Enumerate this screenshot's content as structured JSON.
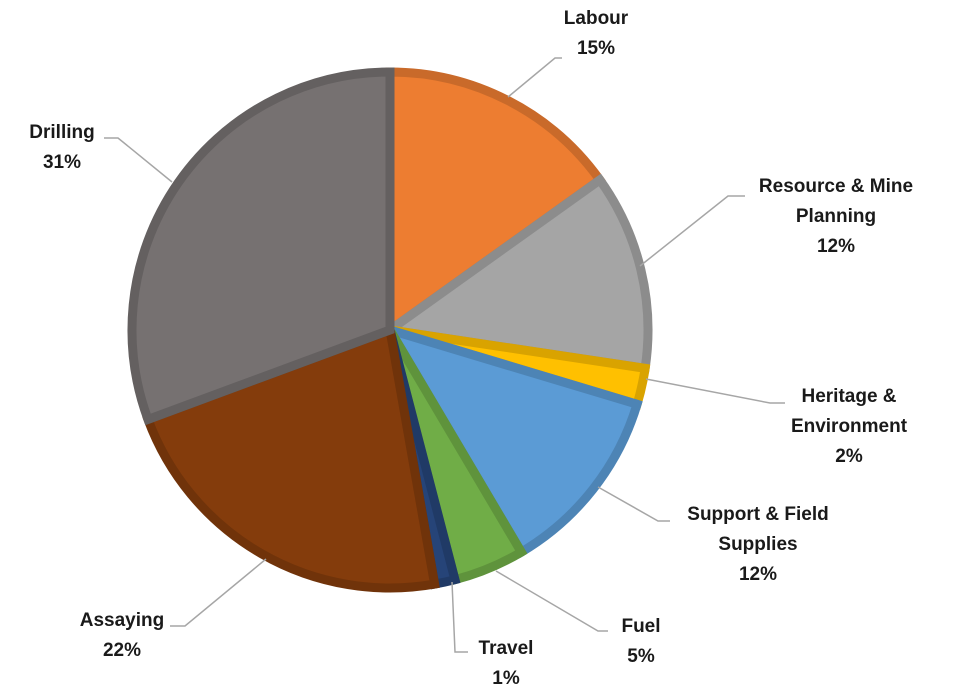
{
  "chart_data": {
    "type": "pie",
    "title": "",
    "slices": [
      {
        "label_lines": [
          "Labour"
        ],
        "percent_label": "15%",
        "value": 15.3,
        "color": "#ED7D31"
      },
      {
        "label_lines": [
          "Resource & Mine",
          "Planning"
        ],
        "percent_label": "12%",
        "value": 12.4,
        "color": "#A5A5A5"
      },
      {
        "label_lines": [
          "Heritage &",
          "Environment"
        ],
        "percent_label": "2%",
        "value": 2.3,
        "color": "#FFC000"
      },
      {
        "label_lines": [
          "Support & Field",
          "Supplies"
        ],
        "percent_label": "12%",
        "value": 12.0,
        "color": "#5B9BD5"
      },
      {
        "label_lines": [
          "Fuel"
        ],
        "percent_label": "5%",
        "value": 4.5,
        "color": "#70AD47"
      },
      {
        "label_lines": [
          "Travel"
        ],
        "percent_label": "1%",
        "value": 1.3,
        "color": "#264478"
      },
      {
        "label_lines": [
          "Assaying"
        ],
        "percent_label": "22%",
        "value": 22.4,
        "color": "#843C0C"
      },
      {
        "label_lines": [
          "Drilling"
        ],
        "percent_label": "31%",
        "value": 31.0,
        "color": "#767171"
      }
    ],
    "start_angle_deg": 0,
    "direction": "clockwise",
    "legend": "none",
    "data_labels": "outside with leader lines"
  }
}
